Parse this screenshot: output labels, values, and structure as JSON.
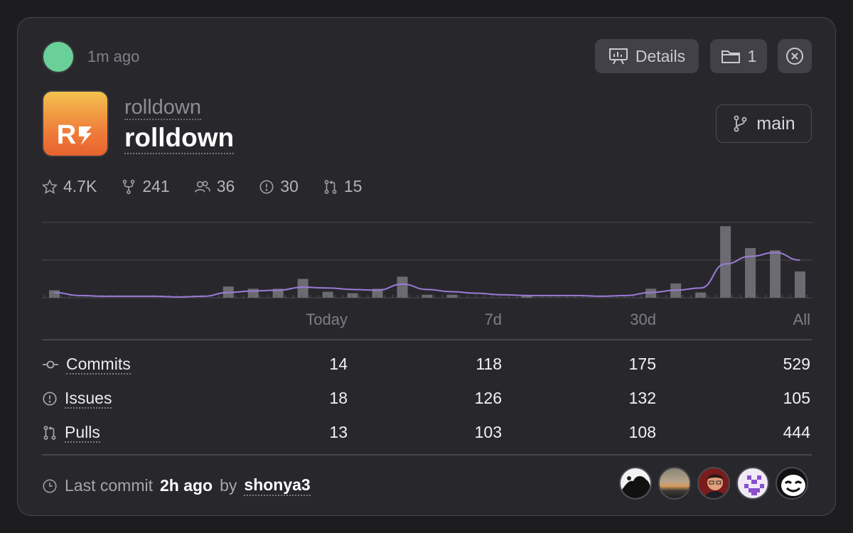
{
  "header": {
    "time_ago": "1m ago",
    "details_label": "Details",
    "folder_count": "1"
  },
  "repo": {
    "owner": "rolldown",
    "name": "rolldown",
    "logo_text": "R",
    "branch": "main"
  },
  "stats": [
    {
      "icon": "star-icon",
      "value": "4.7K"
    },
    {
      "icon": "fork-icon",
      "value": "241"
    },
    {
      "icon": "contributors-icon",
      "value": "36"
    },
    {
      "icon": "issue-icon",
      "value": "30"
    },
    {
      "icon": "pull-request-icon",
      "value": "15"
    }
  ],
  "chart_data": {
    "type": "bar",
    "bar_values": [
      0.1,
      0,
      0,
      0,
      0,
      0,
      0,
      0.15,
      0.12,
      0.12,
      0.25,
      0.08,
      0.06,
      0.12,
      0.28,
      0.04,
      0.04,
      0,
      0,
      0.03,
      0,
      0,
      0,
      0,
      0.12,
      0.19,
      0.07,
      0.95,
      0.66,
      0.63,
      0.35
    ],
    "line_values": [
      0.07,
      0.03,
      0.02,
      0.02,
      0.02,
      0.01,
      0.02,
      0.07,
      0.09,
      0.1,
      0.14,
      0.13,
      0.11,
      0.1,
      0.18,
      0.11,
      0.08,
      0.06,
      0.04,
      0.03,
      0.03,
      0.03,
      0.02,
      0.03,
      0.07,
      0.1,
      0.13,
      0.45,
      0.55,
      0.6,
      0.5
    ],
    "max": 1,
    "grid": true
  },
  "table": {
    "columns": [
      "Today",
      "7d",
      "30d",
      "All"
    ],
    "rows": [
      {
        "label": "Commits",
        "icon": "commit-icon",
        "values": [
          "14",
          "118",
          "175",
          "529"
        ]
      },
      {
        "label": "Issues",
        "icon": "issue-icon",
        "values": [
          "18",
          "126",
          "132",
          "105"
        ]
      },
      {
        "label": "Pulls",
        "icon": "pull-request-icon",
        "values": [
          "13",
          "103",
          "108",
          "444"
        ]
      }
    ]
  },
  "footer": {
    "prefix": "Last commit",
    "time": "2h ago",
    "by": "by",
    "user": "shonya3",
    "avatars": [
      "avatar-1",
      "avatar-2",
      "avatar-3",
      "avatar-4",
      "avatar-5"
    ]
  },
  "colors": {
    "status": "#69d197",
    "line": "#9b7bd8",
    "bar": "#6b6b71"
  }
}
